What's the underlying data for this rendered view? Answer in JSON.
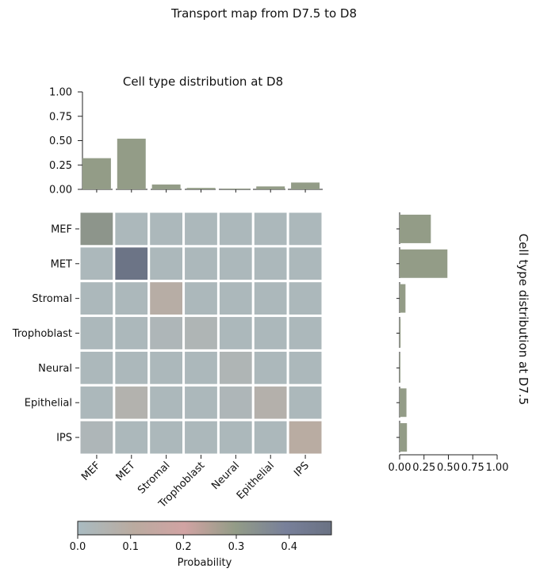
{
  "chart_data": {
    "type": "heatmap",
    "title": "Transport map from D7.5 to D8",
    "categories": [
      "MEF",
      "MET",
      "Stromal",
      "Trophoblast",
      "Neural",
      "Epithelial",
      "IPS"
    ],
    "matrix": [
      [
        0.32,
        0.02,
        0.02,
        0.02,
        0.02,
        0.02,
        0.02
      ],
      [
        0.02,
        0.47,
        0.02,
        0.02,
        0.02,
        0.02,
        0.02
      ],
      [
        0.02,
        0.02,
        0.09,
        0.02,
        0.02,
        0.02,
        0.02
      ],
      [
        0.02,
        0.02,
        0.03,
        0.04,
        0.02,
        0.02,
        0.02
      ],
      [
        0.02,
        0.02,
        0.02,
        0.02,
        0.04,
        0.02,
        0.02
      ],
      [
        0.02,
        0.06,
        0.02,
        0.02,
        0.03,
        0.07,
        0.02
      ],
      [
        0.03,
        0.02,
        0.02,
        0.02,
        0.02,
        0.02,
        0.1
      ]
    ],
    "top_marginal": {
      "title": "Cell type distribution at D8",
      "values": [
        0.32,
        0.52,
        0.05,
        0.015,
        0.008,
        0.03,
        0.07
      ],
      "ylim": [
        0,
        1.0
      ],
      "ticks": [
        "0.00",
        "0.25",
        "0.50",
        "0.75",
        "1.00"
      ]
    },
    "right_marginal": {
      "title": "Cell type distribution at D7.5",
      "values": [
        0.32,
        0.49,
        0.06,
        0.01,
        0.005,
        0.07,
        0.075
      ],
      "xlim": [
        0,
        1.0
      ],
      "ticks": [
        "0.00",
        "0.25",
        "0.50",
        "0.75",
        "1.00"
      ]
    },
    "colorbar": {
      "label": "Probability",
      "min": 0,
      "max": 0.48,
      "ticks": [
        "0.0",
        "0.1",
        "0.2",
        "0.3",
        "0.4"
      ]
    },
    "colors": {
      "bar": "#939c87",
      "cell_gap": "#ffffff"
    }
  }
}
